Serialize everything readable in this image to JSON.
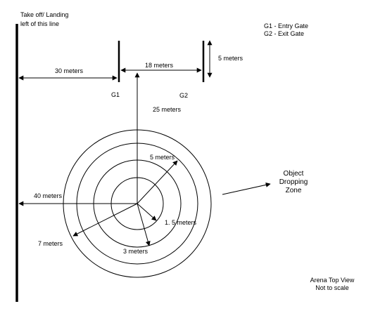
{
  "takeoff": {
    "line1": "Take off/ Landing",
    "line2": "left of this  line"
  },
  "legend": {
    "g1": "G1 - Entry Gate",
    "g2": "G2 - Exit Gate"
  },
  "gates": {
    "g1": "G1",
    "g2": "G2"
  },
  "dimensions": {
    "dist_30": "30 meters",
    "dist_18": "18 meters",
    "dist_5_gate": "5 meters",
    "dist_25": "25 meters",
    "dist_40": "40 meters",
    "radius_5": "5 meters",
    "radius_1_5": "1. 5 meters",
    "radius_3": "3 meters",
    "radius_7": "7 meters"
  },
  "zone": {
    "line1": "Object",
    "line2": "Dropping",
    "line3": "Zone"
  },
  "footer": {
    "line1": "Arena Top View",
    "line2": "Not to scale"
  }
}
